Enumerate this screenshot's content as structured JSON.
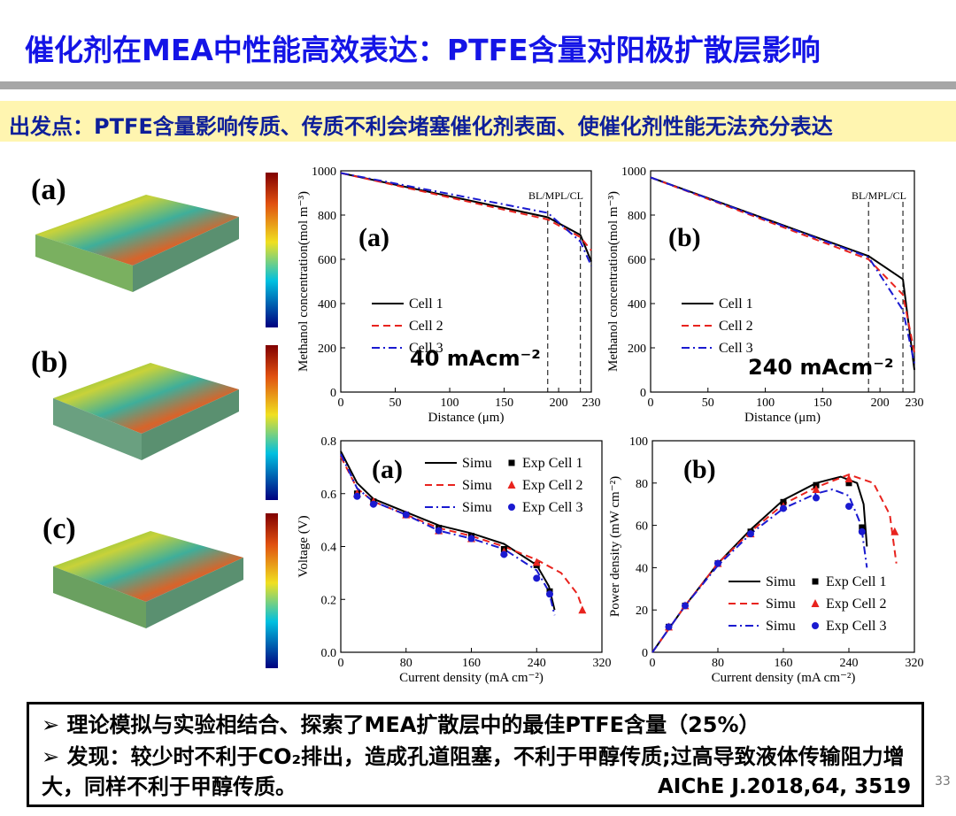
{
  "header": {
    "title": "催化剂在MEA中性能高效表达：PTFE含量对阳极扩散层影响",
    "subtitle": "出发点：PTFE含量影响传质、传质不利会堵塞催化剂表面、使催化剂性能无法充分表达"
  },
  "images": [
    {
      "label": "(a)"
    },
    {
      "label": "(b)"
    },
    {
      "label": "(c)"
    }
  ],
  "chart_data": [
    {
      "type": "line",
      "panel_label": "(a)",
      "condition_label": "40 mAcm⁻²",
      "boundary_label": "BL/MPL/CL",
      "x_label": "Distance (μm)",
      "y_label": "Methanol concentration(mol m⁻³)",
      "xlim": [
        0,
        230
      ],
      "xticks": [
        0,
        50,
        100,
        150,
        200,
        230
      ],
      "ylim": [
        0,
        1000
      ],
      "yticks": [
        0,
        200,
        400,
        600,
        800,
        1000
      ],
      "boundary_lines": [
        190,
        220
      ],
      "legend": "center left",
      "series": [
        {
          "name": "Cell 1",
          "color": "#000000",
          "dash": "solid",
          "x": [
            0,
            190,
            220,
            230
          ],
          "values": [
            990,
            790,
            710,
            590
          ]
        },
        {
          "name": "Cell 2",
          "color": "#e8231e",
          "dash": "dashed",
          "x": [
            0,
            190,
            220,
            230
          ],
          "values": [
            990,
            780,
            700,
            640
          ]
        },
        {
          "name": "Cell 3",
          "color": "#1a1ad0",
          "dash": "dashdot",
          "x": [
            0,
            190,
            220,
            230
          ],
          "values": [
            990,
            810,
            680,
            570
          ]
        }
      ]
    },
    {
      "type": "line",
      "panel_label": "(b)",
      "condition_label": "240 mAcm⁻²",
      "boundary_label": "BL/MPL/CL",
      "x_label": "Distance (μm)",
      "y_label": "Methanol concentration(mol m⁻³)",
      "xlim": [
        0,
        230
      ],
      "xticks": [
        0,
        50,
        100,
        150,
        200,
        230
      ],
      "ylim": [
        0,
        1000
      ],
      "yticks": [
        0,
        200,
        400,
        600,
        800,
        1000
      ],
      "boundary_lines": [
        190,
        220
      ],
      "legend": "center right",
      "series": [
        {
          "name": "Cell 1",
          "color": "#000000",
          "dash": "solid",
          "x": [
            0,
            190,
            220,
            230
          ],
          "values": [
            970,
            615,
            510,
            100
          ]
        },
        {
          "name": "Cell 2",
          "color": "#e8231e",
          "dash": "dashed",
          "x": [
            0,
            190,
            220,
            230
          ],
          "values": [
            970,
            600,
            440,
            180
          ]
        },
        {
          "name": "Cell 3",
          "color": "#1a1ad0",
          "dash": "dashdot",
          "x": [
            0,
            190,
            220,
            230
          ],
          "values": [
            970,
            610,
            370,
            130
          ]
        }
      ]
    },
    {
      "type": "line",
      "panel_label": "(a)",
      "x_label": "Current density (mA cm⁻²)",
      "y_label": "Voltage (V)",
      "xlim": [
        0,
        320
      ],
      "xticks": [
        0,
        80,
        160,
        240,
        320
      ],
      "ylim": [
        0,
        0.8
      ],
      "yticks": [
        {
          "value": 0,
          "label": "0.0"
        },
        0.2,
        0.4,
        0.6,
        0.8
      ],
      "legend": "upper right",
      "series": [
        {
          "name": "Simu",
          "color": "#000000",
          "dash": "solid",
          "x": [
            0,
            20,
            40,
            80,
            120,
            160,
            200,
            240,
            255,
            262
          ],
          "values": [
            0.76,
            0.64,
            0.58,
            0.53,
            0.48,
            0.45,
            0.41,
            0.33,
            0.25,
            0.16
          ]
        },
        {
          "name": "Simu",
          "color": "#e8231e",
          "dash": "dashed",
          "x": [
            0,
            20,
            40,
            80,
            120,
            160,
            200,
            240,
            270,
            290,
            298
          ],
          "values": [
            0.74,
            0.62,
            0.57,
            0.52,
            0.47,
            0.44,
            0.4,
            0.35,
            0.3,
            0.22,
            0.15
          ]
        },
        {
          "name": "Simu",
          "color": "#1a1ad0",
          "dash": "dashdot",
          "x": [
            0,
            20,
            40,
            80,
            120,
            160,
            200,
            240,
            255,
            262
          ],
          "values": [
            0.75,
            0.62,
            0.57,
            0.52,
            0.46,
            0.43,
            0.39,
            0.31,
            0.23,
            0.14
          ]
        },
        {
          "name": "Exp Cell 1",
          "color": "#000000",
          "marker": "square",
          "x": [
            20,
            40,
            80,
            120,
            160,
            200,
            240,
            256
          ],
          "values": [
            0.6,
            0.57,
            0.52,
            0.47,
            0.44,
            0.39,
            0.33,
            0.23
          ]
        },
        {
          "name": "Exp Cell 2",
          "color": "#e8231e",
          "marker": "triangle",
          "x": [
            20,
            40,
            80,
            120,
            160,
            200,
            240,
            296
          ],
          "values": [
            0.6,
            0.57,
            0.52,
            0.46,
            0.43,
            0.38,
            0.34,
            0.16
          ]
        },
        {
          "name": "Exp Cell 3",
          "color": "#1a1ad0",
          "marker": "circle",
          "x": [
            20,
            40,
            80,
            120,
            160,
            200,
            240,
            256
          ],
          "values": [
            0.59,
            0.56,
            0.52,
            0.46,
            0.43,
            0.37,
            0.28,
            0.22
          ]
        }
      ]
    },
    {
      "type": "line",
      "panel_label": "(b)",
      "x_label": "Current density (mA cm⁻²)",
      "y_label": "Power density (mW cm⁻²)",
      "xlim": [
        0,
        320
      ],
      "xticks": [
        0,
        80,
        160,
        240,
        320
      ],
      "ylim": [
        0,
        100
      ],
      "yticks": [
        0,
        20,
        40,
        60,
        80,
        100
      ],
      "legend": "lower right",
      "series": [
        {
          "name": "Simu",
          "color": "#000000",
          "dash": "solid",
          "x": [
            0,
            40,
            80,
            120,
            160,
            200,
            230,
            250,
            258,
            262
          ],
          "values": [
            0,
            22,
            42,
            58,
            72,
            80,
            83,
            80,
            70,
            50
          ]
        },
        {
          "name": "Simu",
          "color": "#e8231e",
          "dash": "dashed",
          "x": [
            0,
            40,
            80,
            120,
            160,
            200,
            240,
            270,
            290,
            298
          ],
          "values": [
            0,
            22,
            42,
            57,
            70,
            78,
            84,
            80,
            65,
            42
          ]
        },
        {
          "name": "Simu",
          "color": "#1a1ad0",
          "dash": "dashdot",
          "x": [
            0,
            40,
            80,
            120,
            160,
            200,
            220,
            240,
            255,
            262
          ],
          "values": [
            0,
            22,
            41,
            56,
            68,
            75,
            77,
            74,
            60,
            40
          ]
        },
        {
          "name": "Exp Cell 1",
          "color": "#000000",
          "marker": "square",
          "x": [
            20,
            40,
            80,
            120,
            160,
            200,
            240,
            256
          ],
          "values": [
            12,
            22,
            42,
            57,
            71,
            79,
            80,
            59
          ]
        },
        {
          "name": "Exp Cell 2",
          "color": "#e8231e",
          "marker": "triangle",
          "x": [
            20,
            40,
            80,
            120,
            160,
            200,
            240,
            296
          ],
          "values": [
            12,
            22,
            42,
            56,
            69,
            77,
            82,
            57
          ]
        },
        {
          "name": "Exp Cell 3",
          "color": "#1a1ad0",
          "marker": "circle",
          "x": [
            20,
            40,
            80,
            120,
            160,
            200,
            240,
            256
          ],
          "values": [
            12,
            22,
            42,
            56,
            68,
            73,
            69,
            57
          ]
        }
      ]
    }
  ],
  "footer": {
    "bullets": [
      "理论模拟与实验相结合、探索了MEA扩散层中的最佳PTFE含量（25%）",
      "发现：较少时不利于CO₂排出，造成孔道阻塞，不利于甲醇传质;过高导致液体传输阻力增大，同样不利于甲醇传质。"
    ],
    "citation": "AIChE J.2018,64, 3519",
    "page_number": "33"
  }
}
